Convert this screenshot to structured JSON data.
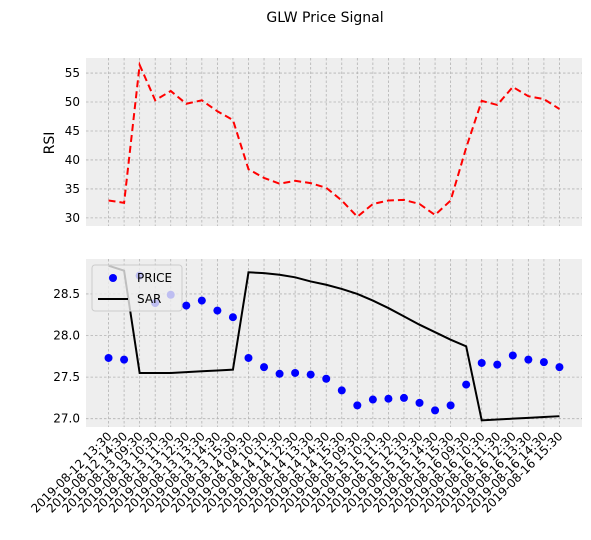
{
  "chart_data": [
    {
      "type": "line",
      "title": "GLW Price Signal",
      "ylabel": "RSI",
      "series": [
        {
          "name": "RSI",
          "color": "#ff0000",
          "dash": true,
          "values": [
            33.0,
            32.6,
            56.4,
            50.3,
            51.9,
            49.7,
            50.3,
            48.4,
            46.9,
            38.4,
            36.9,
            35.9,
            36.4,
            36.0,
            35.2,
            33.0,
            30.2,
            32.4,
            33.0,
            33.1,
            32.4,
            30.5,
            33.0,
            42.1,
            50.2,
            49.5,
            52.6,
            51.0,
            50.5,
            48.8
          ]
        }
      ],
      "ylim": [
        28.6,
        57.6
      ],
      "yticks": [
        30,
        35,
        40,
        45,
        50,
        55
      ],
      "xlim": [
        -1.45,
        30.45
      ],
      "grid": true
    },
    {
      "type": "line",
      "categories": [
        "2019-08-12 13:30",
        "2019-08-12 14:30",
        "2019-08-13 09:30",
        "2019-08-13 10:30",
        "2019-08-13 11:30",
        "2019-08-13 12:30",
        "2019-08-13 13:30",
        "2019-08-13 14:30",
        "2019-08-13 15:30",
        "2019-08-14 09:30",
        "2019-08-14 10:30",
        "2019-08-14 11:30",
        "2019-08-14 12:30",
        "2019-08-14 13:30",
        "2019-08-14 14:30",
        "2019-08-14 15:30",
        "2019-08-15 09:30",
        "2019-08-15 10:30",
        "2019-08-15 11:30",
        "2019-08-15 12:30",
        "2019-08-15 13:30",
        "2019-08-15 14:30",
        "2019-08-15 15:30",
        "2019-08-16 09:30",
        "2019-08-16 10:30",
        "2019-08-16 11:30",
        "2019-08-16 12:30",
        "2019-08-16 13:30",
        "2019-08-16 14:30",
        "2019-08-16 15:30"
      ],
      "series": [
        {
          "name": "PRICE",
          "color": "#0000ff",
          "type": "scatter",
          "values": [
            27.73,
            27.71,
            28.72,
            28.39,
            28.49,
            28.36,
            28.42,
            28.3,
            28.22,
            27.73,
            27.62,
            27.54,
            27.55,
            27.53,
            27.48,
            27.34,
            27.16,
            27.23,
            27.24,
            27.25,
            27.19,
            27.1,
            27.16,
            27.41,
            27.67,
            27.65,
            27.76,
            27.71,
            27.68,
            27.62
          ]
        },
        {
          "name": "SAR",
          "color": "#000000",
          "type": "line",
          "values": [
            28.84,
            28.78,
            27.55,
            27.55,
            27.55,
            27.56,
            27.57,
            27.58,
            27.59,
            28.76,
            28.75,
            28.73,
            28.7,
            28.65,
            28.61,
            28.56,
            28.5,
            28.42,
            28.33,
            28.23,
            28.13,
            28.04,
            27.95,
            27.87,
            26.98,
            26.99,
            27.0,
            27.01,
            27.02,
            27.03
          ]
        }
      ],
      "ylim": [
        26.9,
        28.92
      ],
      "yticks": [
        {
          "value": 27,
          "label": "27.0"
        },
        {
          "value": 27.5,
          "label": "27.5"
        },
        {
          "value": 28,
          "label": "28.0"
        },
        {
          "value": 28.5,
          "label": "28.5"
        }
      ],
      "xlim": [
        -1.45,
        30.45
      ],
      "grid": true,
      "legend": "upper left"
    }
  ]
}
